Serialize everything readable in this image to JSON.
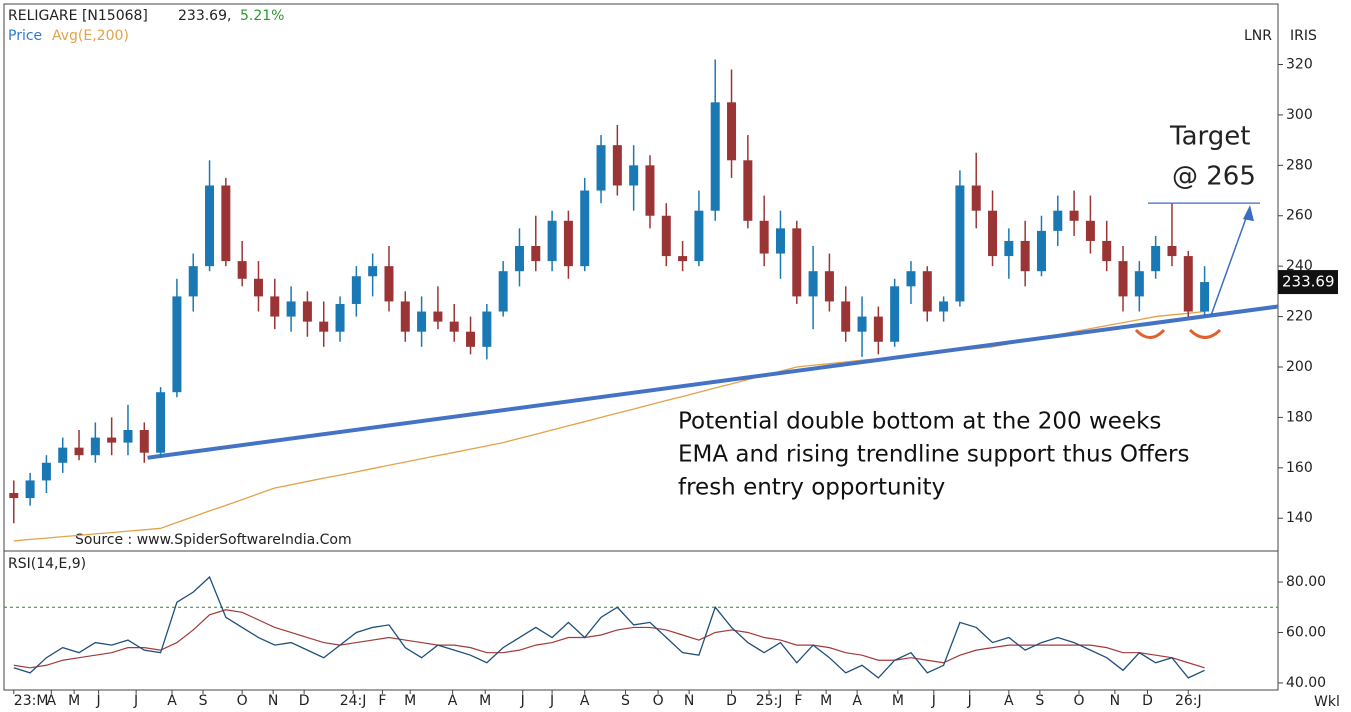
{
  "header": {
    "symbol": "RELIGARE [N15068]",
    "price": "233.69,",
    "change": "5.21%",
    "legend_price": "Price",
    "legend_avg": "Avg(E,200)",
    "scale": "LNR",
    "brand": "IRIS",
    "source": "Source : www.SpiderSoftwareIndia.Com",
    "rsi_label": "RSI(14,E,9)",
    "period": "Wkl"
  },
  "chart_data": {
    "type": "candlestick",
    "ylim": [
      127,
      344
    ],
    "yticks": [
      140,
      160,
      180,
      200,
      220,
      240,
      260,
      280,
      300,
      320
    ],
    "y2lim": [
      37.2,
      92.3
    ],
    "y2ticks": [
      {
        "value": 40,
        "label": "40.00"
      },
      {
        "value": 60,
        "label": "60.00"
      },
      {
        "value": 80,
        "label": "80.00"
      }
    ],
    "xlim": [
      -0.6,
      77.5
    ],
    "xticks": [
      {
        "value": 0,
        "label": "23:M"
      },
      {
        "value": 2.3,
        "label": "A"
      },
      {
        "value": 3.7,
        "label": "M"
      },
      {
        "value": 5.2,
        "label": "J"
      },
      {
        "value": 7.5,
        "label": "J"
      },
      {
        "value": 9.7,
        "label": "A"
      },
      {
        "value": 11.6,
        "label": "S"
      },
      {
        "value": 14,
        "label": "O"
      },
      {
        "value": 15.9,
        "label": "N"
      },
      {
        "value": 17.8,
        "label": "D"
      },
      {
        "value": 20.8,
        "label": "24:J"
      },
      {
        "value": 22.6,
        "label": "F"
      },
      {
        "value": 24.3,
        "label": "M"
      },
      {
        "value": 26.9,
        "label": "A"
      },
      {
        "value": 28.9,
        "label": "M"
      },
      {
        "value": 31.2,
        "label": "J"
      },
      {
        "value": 33,
        "label": "J"
      },
      {
        "value": 35,
        "label": "A"
      },
      {
        "value": 37.5,
        "label": "S"
      },
      {
        "value": 39.5,
        "label": "O"
      },
      {
        "value": 41.4,
        "label": "N"
      },
      {
        "value": 44,
        "label": "D"
      },
      {
        "value": 46.3,
        "label": "25:J"
      },
      {
        "value": 48.1,
        "label": "F"
      },
      {
        "value": 49.8,
        "label": "M"
      },
      {
        "value": 51.7,
        "label": "A"
      },
      {
        "value": 54.2,
        "label": "M"
      },
      {
        "value": 56.4,
        "label": "J"
      },
      {
        "value": 58.6,
        "label": "J"
      },
      {
        "value": 61,
        "label": "A"
      },
      {
        "value": 62.9,
        "label": "S"
      },
      {
        "value": 65.3,
        "label": "O"
      },
      {
        "value": 67.5,
        "label": "N"
      },
      {
        "value": 69.5,
        "label": "D"
      },
      {
        "value": 72,
        "label": "26:J"
      }
    ],
    "up_color": "#1a78b4",
    "down_color": "#9b3535",
    "candles": [
      [
        150,
        155,
        138,
        148
      ],
      [
        148,
        158,
        145,
        155
      ],
      [
        155,
        165,
        150,
        162
      ],
      [
        162,
        172,
        158,
        168
      ],
      [
        168,
        175,
        163,
        165
      ],
      [
        165,
        178,
        162,
        172
      ],
      [
        172,
        180,
        165,
        170
      ],
      [
        170,
        185,
        165,
        175
      ],
      [
        175,
        178,
        162,
        166
      ],
      [
        166,
        192,
        164,
        190
      ],
      [
        190,
        235,
        188,
        228
      ],
      [
        228,
        245,
        222,
        240
      ],
      [
        240,
        282,
        238,
        272
      ],
      [
        272,
        275,
        240,
        242
      ],
      [
        242,
        250,
        232,
        235
      ],
      [
        235,
        242,
        222,
        228
      ],
      [
        228,
        235,
        215,
        220
      ],
      [
        220,
        232,
        214,
        226
      ],
      [
        226,
        230,
        212,
        218
      ],
      [
        218,
        226,
        208,
        214
      ],
      [
        214,
        228,
        210,
        225
      ],
      [
        225,
        240,
        220,
        236
      ],
      [
        236,
        245,
        228,
        240
      ],
      [
        240,
        248,
        222,
        226
      ],
      [
        226,
        230,
        210,
        214
      ],
      [
        214,
        228,
        208,
        222
      ],
      [
        222,
        232,
        215,
        218
      ],
      [
        218,
        225,
        210,
        214
      ],
      [
        214,
        220,
        205,
        208
      ],
      [
        208,
        225,
        203,
        222
      ],
      [
        222,
        242,
        220,
        238
      ],
      [
        238,
        255,
        232,
        248
      ],
      [
        248,
        260,
        238,
        242
      ],
      [
        242,
        262,
        238,
        258
      ],
      [
        258,
        262,
        235,
        240
      ],
      [
        240,
        275,
        238,
        270
      ],
      [
        270,
        292,
        265,
        288
      ],
      [
        288,
        296,
        268,
        272
      ],
      [
        272,
        288,
        262,
        280
      ],
      [
        280,
        284,
        255,
        260
      ],
      [
        260,
        265,
        240,
        244
      ],
      [
        244,
        250,
        238,
        242
      ],
      [
        242,
        270,
        240,
        262
      ],
      [
        262,
        322,
        258,
        305
      ],
      [
        305,
        318,
        275,
        282
      ],
      [
        282,
        292,
        255,
        258
      ],
      [
        258,
        268,
        240,
        245
      ],
      [
        245,
        262,
        235,
        255
      ],
      [
        255,
        258,
        225,
        228
      ],
      [
        228,
        248,
        215,
        238
      ],
      [
        238,
        245,
        222,
        226
      ],
      [
        226,
        232,
        210,
        214
      ],
      [
        214,
        228,
        204,
        220
      ],
      [
        220,
        224,
        205,
        210
      ],
      [
        210,
        235,
        208,
        232
      ],
      [
        232,
        242,
        225,
        238
      ],
      [
        238,
        240,
        218,
        222
      ],
      [
        222,
        228,
        218,
        226
      ],
      [
        226,
        278,
        224,
        272
      ],
      [
        272,
        285,
        255,
        262
      ],
      [
        262,
        270,
        240,
        244
      ],
      [
        244,
        255,
        235,
        250
      ],
      [
        250,
        258,
        232,
        238
      ],
      [
        238,
        260,
        236,
        254
      ],
      [
        254,
        268,
        248,
        262
      ],
      [
        262,
        270,
        252,
        258
      ],
      [
        258,
        268,
        245,
        250
      ],
      [
        250,
        258,
        238,
        242
      ],
      [
        242,
        248,
        222,
        228
      ],
      [
        228,
        242,
        222,
        238
      ],
      [
        238,
        252,
        235,
        248
      ],
      [
        248,
        265,
        240,
        244
      ],
      [
        244,
        246,
        220,
        222
      ],
      [
        222,
        240,
        220,
        233.69
      ]
    ],
    "ema": {
      "name": "Avg(E,200)",
      "color": "#e3a24a",
      "values": [
        131,
        131.6,
        132.1,
        132.7,
        133.2,
        133.8,
        134.3,
        134.9,
        135.4,
        136,
        138.3,
        140.6,
        142.9,
        145.1,
        147.4,
        149.7,
        152,
        153.3,
        154.6,
        155.9,
        157.1,
        158.4,
        159.7,
        161,
        162.3,
        163.6,
        164.9,
        166.1,
        167.4,
        168.7,
        170,
        171.7,
        173.3,
        175,
        176.7,
        178.3,
        180,
        181.7,
        183.3,
        185,
        186.7,
        188.3,
        190,
        191.7,
        193.3,
        195,
        196.7,
        198.3,
        200,
        200.7,
        201.3,
        202,
        202.7,
        203.3,
        204,
        204.7,
        205.3,
        206,
        206.7,
        207.3,
        208,
        209.2,
        210.4,
        211.6,
        212.8,
        214,
        215.2,
        216.4,
        217.6,
        218.8,
        220,
        220.7,
        221.3,
        222
      ]
    },
    "rsi": {
      "color": "#1f4f7a",
      "axis": "y2",
      "values": [
        46,
        44,
        50,
        54,
        52,
        56,
        55,
        57,
        53,
        52,
        72,
        76,
        82,
        66,
        62,
        58,
        55,
        56,
        53,
        50,
        55,
        60,
        62,
        63,
        54,
        50,
        55,
        53,
        51,
        48,
        54,
        58,
        62,
        58,
        64,
        58,
        66,
        70,
        63,
        64,
        58,
        52,
        51,
        70,
        62,
        56,
        52,
        56,
        48,
        55,
        50,
        44,
        47,
        42,
        49,
        52,
        44,
        47,
        64,
        62,
        56,
        58,
        53,
        56,
        58,
        56,
        53,
        50,
        45,
        52,
        48,
        50,
        42,
        45
      ]
    },
    "rsi_signal": {
      "color": "#a33a3a",
      "axis": "y2",
      "values": [
        47,
        46,
        47,
        49,
        50,
        51,
        52,
        54,
        54,
        53,
        56,
        61,
        67,
        69,
        68,
        65,
        62,
        60,
        58,
        56,
        55,
        56,
        57,
        58,
        57,
        56,
        55,
        55,
        54,
        52,
        52,
        53,
        55,
        56,
        58,
        58,
        59,
        61,
        62,
        62,
        61,
        59,
        57,
        60,
        61,
        60,
        58,
        57,
        55,
        55,
        54,
        52,
        51,
        49,
        49,
        50,
        49,
        48,
        51,
        53,
        54,
        55,
        55,
        55,
        55,
        55,
        55,
        54,
        52,
        52,
        51,
        50,
        48,
        46
      ]
    },
    "rsi_level": 70,
    "trendline": {
      "color": "#4472c4",
      "x": [
        8.2,
        77.5
      ],
      "values": [
        164,
        224
      ]
    },
    "target": {
      "value": 265,
      "label": "Target",
      "sublabel": "@ 265"
    },
    "annotation": [
      "Potential double bottom at the 200 weeks",
      "EMA and rising trendline support thus Offers",
      "fresh entry opportunity"
    ]
  }
}
